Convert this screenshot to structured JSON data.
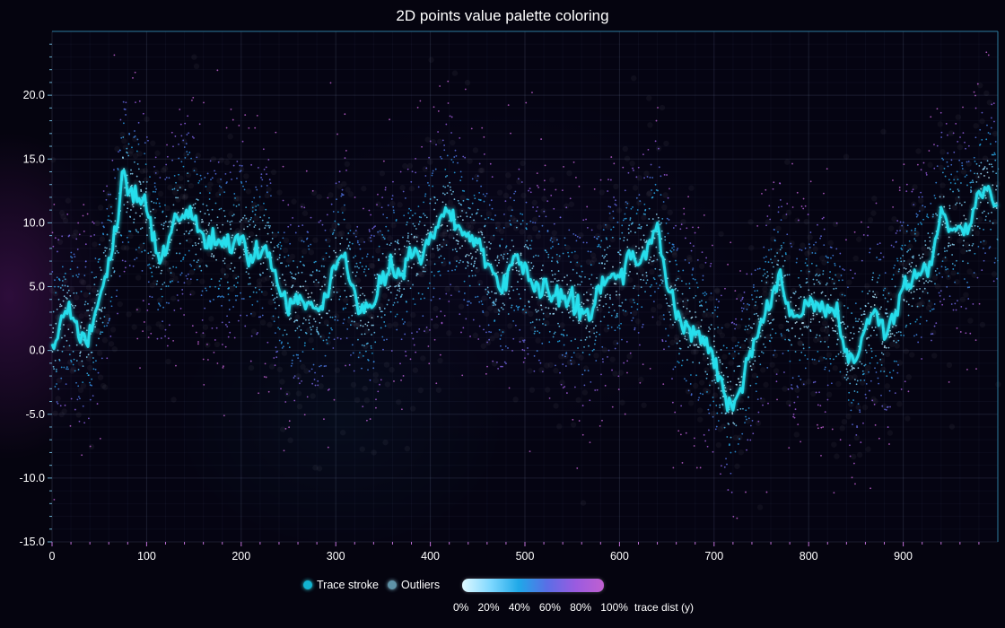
{
  "chart_data": {
    "type": "scatter",
    "title": "2D points value palette coloring",
    "xlabel": "",
    "ylabel": "",
    "xlim": [
      0,
      1000
    ],
    "ylim": [
      -15,
      25
    ],
    "x_ticks": [
      "0",
      "100",
      "200",
      "300",
      "400",
      "500",
      "600",
      "700",
      "800",
      "900"
    ],
    "y_ticks": [
      "-15.0",
      "-10.0",
      "-5.0",
      "0.0",
      "5.0",
      "10.0",
      "15.0",
      "20.0"
    ],
    "grid": true,
    "legend_placement": "bottom-center",
    "series": [
      {
        "name": "Trace stroke",
        "color": "#27e0ee",
        "x": [
          0,
          10,
          20,
          30,
          40,
          50,
          60,
          70,
          75,
          80,
          90,
          100,
          110,
          115,
          120,
          130,
          140,
          145,
          150,
          160,
          170,
          180,
          190,
          200,
          210,
          220,
          230,
          240,
          250,
          260,
          270,
          280,
          290,
          300,
          310,
          320,
          330,
          340,
          350,
          360,
          370,
          380,
          390,
          400,
          410,
          420,
          430,
          440,
          450,
          460,
          470,
          480,
          490,
          500,
          510,
          520,
          530,
          540,
          550,
          560,
          570,
          580,
          590,
          600,
          610,
          620,
          630,
          640,
          650,
          660,
          670,
          680,
          690,
          700,
          710,
          720,
          730,
          740,
          750,
          760,
          770,
          780,
          790,
          800,
          810,
          820,
          830,
          840,
          850,
          860,
          870,
          880,
          890,
          900,
          910,
          920,
          930,
          940,
          950,
          960,
          970,
          980,
          990,
          1000
        ],
        "y": [
          0.5,
          2.5,
          3,
          1,
          1.5,
          4,
          7,
          10,
          14,
          12.5,
          12,
          11,
          8,
          7.5,
          8,
          10,
          11,
          11.5,
          10,
          9,
          8.5,
          8.5,
          8,
          9,
          7.5,
          8,
          7.5,
          5,
          3.5,
          4,
          4,
          3.5,
          4,
          7,
          7,
          4,
          3,
          3.5,
          5.5,
          6.5,
          6.5,
          7.5,
          7.5,
          9,
          10,
          11,
          9.5,
          8.5,
          8.5,
          7,
          5.5,
          5,
          7.5,
          6.5,
          4.5,
          5,
          4,
          4.5,
          4,
          3,
          3,
          5,
          6,
          5.5,
          7.5,
          7,
          8,
          9.5,
          5.5,
          3,
          2,
          1.5,
          0.5,
          -0.5,
          -3,
          -4.5,
          -2,
          0,
          2.5,
          4,
          5.5,
          3,
          2.5,
          3.5,
          3.5,
          3,
          2.5,
          0,
          -0.5,
          2,
          3.5,
          1,
          2.5,
          5,
          5.5,
          6.5,
          7,
          11,
          9.5,
          10,
          9.5,
          12.5,
          13,
          11
        ]
      },
      {
        "name": "Outliers",
        "color": "#6aa5c0",
        "note_points": "dense scatter cloud around trace"
      }
    ],
    "colorbar": {
      "label": "trace dist (y)",
      "ticks": [
        "0%",
        "20%",
        "40%",
        "60%",
        "80%",
        "100%"
      ],
      "palette": [
        "#dff8ff",
        "#7fd8ff",
        "#1fa8e8",
        "#5a6ee6",
        "#9a5be0",
        "#c060d0"
      ]
    }
  }
}
